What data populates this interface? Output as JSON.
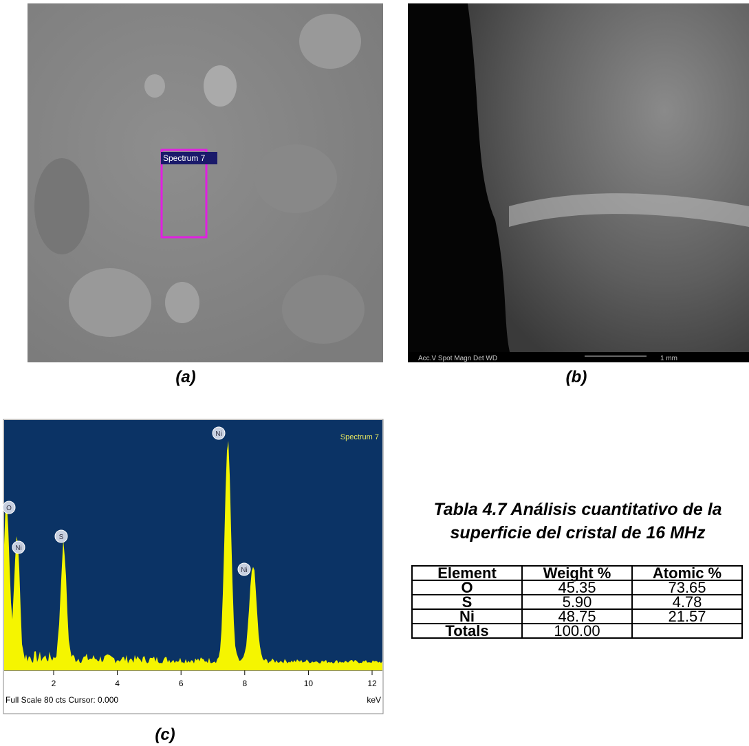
{
  "panels": {
    "a": {
      "label": "(a)",
      "roi_label": "Spectrum 7"
    },
    "b": {
      "label": "(b)",
      "footer": "Acc.V   Spot Magn    Det  WD",
      "scale_label": "1 mm"
    },
    "c": {
      "label": "(c)",
      "title": "Spectrum 7",
      "peaks": [
        "O",
        "Ni",
        "S",
        "Ni",
        "Ni"
      ],
      "xticks": [
        2,
        4,
        6,
        8,
        10,
        12
      ],
      "footer": "Full Scale 80 cts Cursor: 0.000",
      "unit": "keV"
    }
  },
  "caption": [
    "Tabla 4.7 Análisis cuantitativo de la",
    "superficie del cristal de 16 MHz"
  ],
  "table": {
    "header": [
      "Element",
      "Weight %",
      "Atomic %"
    ],
    "rows": [
      [
        "O",
        "45.35",
        "73.65"
      ],
      [
        "S",
        "5.90",
        "4.78"
      ],
      [
        "Ni",
        "48.75",
        "21.57"
      ],
      [
        "Totals",
        "100.00",
        ""
      ]
    ]
  }
}
